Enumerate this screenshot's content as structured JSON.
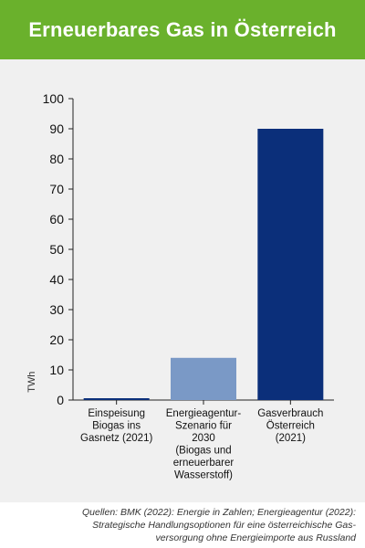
{
  "header": {
    "title": "Erneuerbares Gas in Österreich"
  },
  "chart_data": {
    "type": "bar",
    "title": "Erneuerbares Gas in Österreich",
    "ylabel": "TWh",
    "xlabel": "",
    "ylim": [
      0,
      100
    ],
    "yticks": [
      0,
      10,
      20,
      30,
      40,
      50,
      60,
      70,
      80,
      90,
      100
    ],
    "grid": false,
    "categories": [
      [
        "Einspeisung",
        "Biogas ins",
        "Gasnetz (2021)"
      ],
      [
        "Energieagentur-",
        "Szenario für",
        "2030",
        "(Biogas und",
        "erneuerbarer",
        "Wasserstoff)"
      ],
      [
        "Gasverbrauch",
        "Österreich",
        "(2021)"
      ]
    ],
    "values": [
      0.14,
      14,
      90
    ],
    "colors": [
      "#0b2f7a",
      "#7a99c6",
      "#0b2f7a"
    ]
  },
  "footer": {
    "source_lines": [
      "Quellen: BMK (2022): Energie in Zahlen; Energieagentur (2022):",
      "Strategische Handlungsoptionen für eine österreichische Gas-",
      "versorgung ohne Energieimporte aus Russland"
    ]
  }
}
